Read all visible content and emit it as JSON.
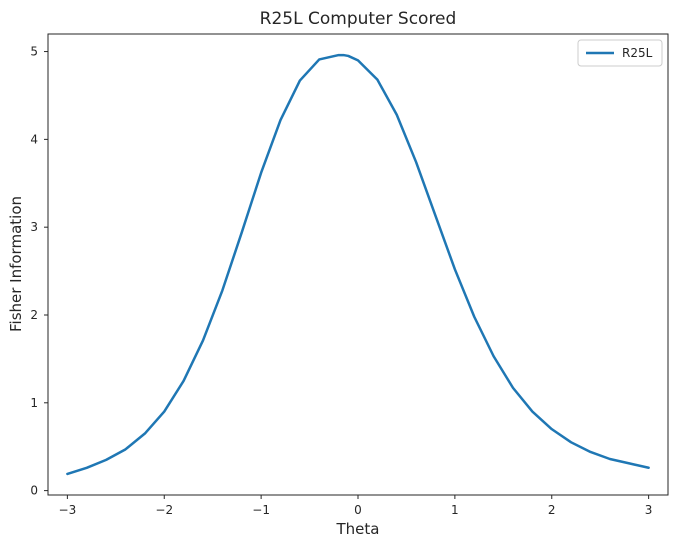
{
  "chart_data": {
    "type": "line",
    "title": "R25L Computer Scored",
    "xlabel": "Theta",
    "ylabel": "Fisher Information",
    "xlim": [
      -3.2,
      3.2
    ],
    "ylim": [
      -0.05,
      5.2
    ],
    "xticks": [
      -3,
      -2,
      -1,
      0,
      1,
      2,
      3
    ],
    "xtick_labels": [
      "−3",
      "−2",
      "−1",
      "0",
      "1",
      "2",
      "3"
    ],
    "yticks": [
      0,
      1,
      2,
      3,
      4,
      5
    ],
    "ytick_labels": [
      "0",
      "1",
      "2",
      "3",
      "4",
      "5"
    ],
    "grid": false,
    "legend_position": "top-right",
    "series": [
      {
        "name": "R25L",
        "color": "#1f77b4",
        "x": [
          -3.0,
          -2.8,
          -2.6,
          -2.4,
          -2.2,
          -2.0,
          -1.8,
          -1.6,
          -1.4,
          -1.2,
          -1.0,
          -0.8,
          -0.6,
          -0.4,
          -0.2,
          -0.15,
          -0.1,
          0.0,
          0.2,
          0.4,
          0.6,
          0.8,
          1.0,
          1.2,
          1.4,
          1.6,
          1.8,
          2.0,
          2.2,
          2.4,
          2.6,
          2.8,
          3.0
        ],
        "values": [
          0.19,
          0.26,
          0.35,
          0.47,
          0.65,
          0.9,
          1.25,
          1.71,
          2.28,
          2.94,
          3.62,
          4.22,
          4.67,
          4.91,
          4.96,
          4.96,
          4.95,
          4.9,
          4.68,
          4.28,
          3.74,
          3.13,
          2.52,
          1.98,
          1.53,
          1.17,
          0.9,
          0.7,
          0.55,
          0.44,
          0.36,
          0.31,
          0.26
        ]
      }
    ]
  }
}
